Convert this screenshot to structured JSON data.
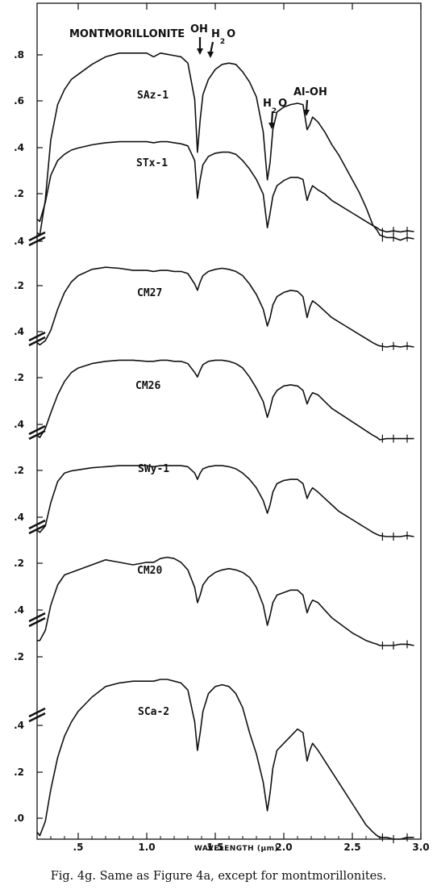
{
  "caption": "Fig. 4g.   Same as Figure 4a, except for montmorillonites.",
  "chart_data": {
    "type": "line",
    "title": "MONTMORILLONITE",
    "xlabel_parts": [
      "WAVELENGTH (",
      "μm",
      ")"
    ],
    "xlim": [
      0.2,
      3.0
    ],
    "x_ticks": [
      0.5,
      1.0,
      1.5,
      2.0,
      2.5,
      3.0
    ],
    "x_tick_labels": [
      ".5",
      "1.0",
      "1.5",
      "2.0",
      "2.5",
      "3.0"
    ],
    "annotations": [
      {
        "text": "OH",
        "sub": "",
        "tail": "",
        "x": 1.38
      },
      {
        "text": "H",
        "sub": "2",
        "tail": "O",
        "x": 1.45
      },
      {
        "text": "H",
        "sub": "2",
        "tail": "O",
        "x": 1.92
      },
      {
        "text": "Al-OH",
        "sub": "",
        "tail": "",
        "x": 2.2
      }
    ],
    "series": [
      {
        "name": "SAz-1",
        "ylim": [
          0.0,
          0.9
        ],
        "ticks": [
          0.2,
          0.4,
          0.6,
          0.8
        ],
        "tick_labels": [
          ".2",
          ".4",
          ".6",
          ".8"
        ],
        "x": [
          0.2,
          0.22,
          0.26,
          0.3,
          0.35,
          0.4,
          0.45,
          0.5,
          0.6,
          0.7,
          0.8,
          0.9,
          1.0,
          1.05,
          1.1,
          1.15,
          1.2,
          1.25,
          1.3,
          1.35,
          1.37,
          1.39,
          1.41,
          1.45,
          1.5,
          1.55,
          1.6,
          1.65,
          1.7,
          1.75,
          1.8,
          1.85,
          1.88,
          1.9,
          1.92,
          1.95,
          2.0,
          2.05,
          2.1,
          2.14,
          2.17,
          2.19,
          2.21,
          2.25,
          2.3,
          2.35,
          2.4,
          2.45,
          2.5,
          2.55,
          2.6,
          2.65,
          2.68,
          2.7,
          2.75,
          2.8,
          2.85,
          2.9,
          2.95
        ],
        "y": [
          0.07,
          0.06,
          0.2,
          0.44,
          0.58,
          0.64,
          0.68,
          0.7,
          0.74,
          0.77,
          0.785,
          0.785,
          0.785,
          0.77,
          0.785,
          0.78,
          0.775,
          0.77,
          0.745,
          0.6,
          0.39,
          0.52,
          0.62,
          0.68,
          0.72,
          0.74,
          0.745,
          0.74,
          0.71,
          0.67,
          0.61,
          0.47,
          0.28,
          0.35,
          0.48,
          0.55,
          0.57,
          0.58,
          0.585,
          0.58,
          0.48,
          0.5,
          0.53,
          0.51,
          0.47,
          0.42,
          0.38,
          0.33,
          0.28,
          0.23,
          0.17,
          0.1,
          0.08,
          0.06,
          0.05,
          0.05,
          0.04,
          0.05,
          0.045
        ]
      },
      {
        "name": "STx-1",
        "ylim": [
          0.0,
          0.5
        ],
        "ticks": [
          0.2
        ],
        "tick_labels": [
          ".2"
        ],
        "x": [
          0.2,
          0.22,
          0.26,
          0.3,
          0.35,
          0.4,
          0.45,
          0.5,
          0.6,
          0.7,
          0.8,
          0.9,
          1.0,
          1.05,
          1.1,
          1.15,
          1.2,
          1.25,
          1.3,
          1.35,
          1.37,
          1.39,
          1.41,
          1.45,
          1.5,
          1.55,
          1.6,
          1.65,
          1.7,
          1.75,
          1.8,
          1.85,
          1.88,
          1.9,
          1.92,
          1.95,
          2.0,
          2.05,
          2.1,
          2.14,
          2.17,
          2.19,
          2.21,
          2.25,
          2.3,
          2.35,
          2.4,
          2.45,
          2.5,
          2.55,
          2.6,
          2.65,
          2.68,
          2.7,
          2.75,
          2.8,
          2.85,
          2.9,
          2.95
        ],
        "y": [
          0.07,
          0.06,
          0.15,
          0.28,
          0.35,
          0.38,
          0.4,
          0.41,
          0.425,
          0.435,
          0.44,
          0.44,
          0.44,
          0.435,
          0.44,
          0.44,
          0.435,
          0.43,
          0.42,
          0.35,
          0.17,
          0.26,
          0.33,
          0.37,
          0.385,
          0.39,
          0.39,
          0.38,
          0.35,
          0.31,
          0.26,
          0.19,
          0.03,
          0.1,
          0.18,
          0.23,
          0.255,
          0.27,
          0.27,
          0.26,
          0.16,
          0.2,
          0.23,
          0.21,
          0.19,
          0.16,
          0.14,
          0.12,
          0.1,
          0.08,
          0.06,
          0.04,
          0.03,
          0.02,
          0.01,
          0.015,
          0.01,
          0.015,
          0.012
        ]
      },
      {
        "name": "CM27",
        "ylim": [
          0.0,
          0.5
        ],
        "ticks": [
          0.2,
          0.4
        ],
        "tick_labels": [
          ".2",
          ".4"
        ],
        "x": [
          0.2,
          0.22,
          0.26,
          0.3,
          0.35,
          0.4,
          0.45,
          0.5,
          0.6,
          0.7,
          0.8,
          0.9,
          1.0,
          1.05,
          1.1,
          1.15,
          1.2,
          1.25,
          1.3,
          1.35,
          1.37,
          1.39,
          1.41,
          1.45,
          1.5,
          1.55,
          1.6,
          1.65,
          1.7,
          1.75,
          1.8,
          1.85,
          1.88,
          1.9,
          1.92,
          1.95,
          2.0,
          2.05,
          2.1,
          2.14,
          2.17,
          2.19,
          2.21,
          2.25,
          2.3,
          2.35,
          2.4,
          2.45,
          2.5,
          2.55,
          2.6,
          2.65,
          2.68,
          2.7,
          2.75,
          2.8,
          2.85,
          2.9,
          2.95
        ],
        "y": [
          0.02,
          0.01,
          0.03,
          0.08,
          0.18,
          0.26,
          0.31,
          0.34,
          0.37,
          0.38,
          0.375,
          0.365,
          0.365,
          0.36,
          0.365,
          0.365,
          0.36,
          0.36,
          0.35,
          0.3,
          0.27,
          0.31,
          0.34,
          0.36,
          0.37,
          0.375,
          0.37,
          0.36,
          0.34,
          0.3,
          0.25,
          0.18,
          0.1,
          0.14,
          0.2,
          0.24,
          0.26,
          0.27,
          0.265,
          0.24,
          0.14,
          0.19,
          0.22,
          0.2,
          0.17,
          0.14,
          0.12,
          0.1,
          0.08,
          0.06,
          0.04,
          0.02,
          0.01,
          0.005,
          0.0,
          0.005,
          0.0,
          0.005,
          0.0
        ]
      },
      {
        "name": "CM26",
        "ylim": [
          0.0,
          0.45
        ],
        "ticks": [
          0.2,
          0.4
        ],
        "tick_labels": [
          ".2",
          ".4"
        ],
        "x": [
          0.2,
          0.22,
          0.26,
          0.3,
          0.35,
          0.4,
          0.45,
          0.5,
          0.6,
          0.7,
          0.8,
          0.9,
          1.0,
          1.05,
          1.1,
          1.15,
          1.2,
          1.25,
          1.3,
          1.35,
          1.37,
          1.39,
          1.41,
          1.45,
          1.5,
          1.55,
          1.6,
          1.65,
          1.7,
          1.75,
          1.8,
          1.85,
          1.88,
          1.9,
          1.92,
          1.95,
          2.0,
          2.05,
          2.1,
          2.14,
          2.17,
          2.19,
          2.21,
          2.25,
          2.3,
          2.35,
          2.4,
          2.45,
          2.5,
          2.55,
          2.6,
          2.65,
          2.68,
          2.7,
          2.75,
          2.8,
          2.85,
          2.9,
          2.95
        ],
        "y": [
          0.02,
          0.01,
          0.05,
          0.12,
          0.2,
          0.26,
          0.3,
          0.32,
          0.34,
          0.35,
          0.355,
          0.355,
          0.35,
          0.35,
          0.355,
          0.355,
          0.35,
          0.35,
          0.34,
          0.3,
          0.28,
          0.31,
          0.335,
          0.35,
          0.355,
          0.355,
          0.35,
          0.34,
          0.32,
          0.28,
          0.23,
          0.17,
          0.1,
          0.14,
          0.19,
          0.22,
          0.24,
          0.245,
          0.24,
          0.22,
          0.16,
          0.19,
          0.21,
          0.2,
          0.17,
          0.14,
          0.12,
          0.1,
          0.08,
          0.06,
          0.04,
          0.02,
          0.01,
          0.0,
          0.005,
          0.005,
          0.005,
          0.005,
          0.005
        ]
      },
      {
        "name": "SWy-1",
        "ylim": [
          0.0,
          0.4
        ],
        "ticks": [
          0.2,
          0.4
        ],
        "tick_labels": [
          ".2",
          ".4"
        ],
        "x": [
          0.2,
          0.22,
          0.26,
          0.3,
          0.35,
          0.4,
          0.45,
          0.5,
          0.6,
          0.7,
          0.8,
          0.9,
          1.0,
          1.05,
          1.1,
          1.15,
          1.2,
          1.25,
          1.3,
          1.35,
          1.37,
          1.39,
          1.41,
          1.45,
          1.5,
          1.55,
          1.6,
          1.65,
          1.7,
          1.75,
          1.8,
          1.85,
          1.88,
          1.9,
          1.92,
          1.95,
          2.0,
          2.05,
          2.1,
          2.14,
          2.17,
          2.19,
          2.21,
          2.25,
          2.3,
          2.35,
          2.4,
          2.45,
          2.5,
          2.55,
          2.6,
          2.65,
          2.68,
          2.7,
          2.75,
          2.8,
          2.85,
          2.9,
          2.95
        ],
        "y": [
          0.03,
          0.02,
          0.05,
          0.16,
          0.26,
          0.3,
          0.31,
          0.315,
          0.325,
          0.33,
          0.335,
          0.335,
          0.335,
          0.33,
          0.335,
          0.335,
          0.335,
          0.335,
          0.33,
          0.3,
          0.27,
          0.3,
          0.32,
          0.33,
          0.335,
          0.335,
          0.33,
          0.32,
          0.3,
          0.27,
          0.23,
          0.17,
          0.11,
          0.15,
          0.21,
          0.25,
          0.265,
          0.27,
          0.27,
          0.25,
          0.18,
          0.21,
          0.23,
          0.21,
          0.18,
          0.15,
          0.12,
          0.1,
          0.08,
          0.06,
          0.04,
          0.02,
          0.01,
          0.005,
          0.0,
          0.0,
          0.0,
          0.005,
          0.0
        ]
      },
      {
        "name": "CM20",
        "ylim": [
          0.0,
          0.4
        ],
        "ticks": [
          0.2,
          0.4
        ],
        "tick_labels": [
          ".2",
          ".4"
        ],
        "x": [
          0.2,
          0.22,
          0.26,
          0.3,
          0.35,
          0.4,
          0.45,
          0.5,
          0.6,
          0.7,
          0.8,
          0.9,
          1.0,
          1.05,
          1.1,
          1.15,
          1.2,
          1.25,
          1.3,
          1.35,
          1.37,
          1.39,
          1.41,
          1.45,
          1.5,
          1.55,
          1.6,
          1.65,
          1.7,
          1.75,
          1.8,
          1.85,
          1.88,
          1.9,
          1.92,
          1.95,
          2.0,
          2.05,
          2.1,
          2.14,
          2.17,
          2.19,
          2.21,
          2.25,
          2.3,
          2.35,
          2.4,
          2.45,
          2.5,
          2.55,
          2.6,
          2.65,
          2.68,
          2.7,
          2.75,
          2.8,
          2.85,
          2.9,
          2.95
        ],
        "y": [
          0.02,
          0.02,
          0.06,
          0.16,
          0.24,
          0.28,
          0.29,
          0.3,
          0.32,
          0.34,
          0.33,
          0.32,
          0.33,
          0.33,
          0.345,
          0.35,
          0.345,
          0.33,
          0.3,
          0.23,
          0.17,
          0.2,
          0.24,
          0.27,
          0.29,
          0.3,
          0.305,
          0.3,
          0.29,
          0.27,
          0.23,
          0.16,
          0.08,
          0.12,
          0.17,
          0.2,
          0.21,
          0.22,
          0.22,
          0.2,
          0.13,
          0.16,
          0.18,
          0.17,
          0.14,
          0.11,
          0.09,
          0.07,
          0.05,
          0.035,
          0.02,
          0.01,
          0.005,
          0.0,
          0.0,
          0.0,
          0.005,
          0.005,
          0.0
        ]
      },
      {
        "name": "SCa-2",
        "ylim": [
          0.0,
          0.5
        ],
        "ticks": [
          0.0,
          0.2,
          0.4
        ],
        "tick_labels": [
          ".0",
          ".2",
          ".4"
        ],
        "x": [
          0.2,
          0.22,
          0.26,
          0.3,
          0.35,
          0.4,
          0.45,
          0.5,
          0.6,
          0.7,
          0.8,
          0.9,
          1.0,
          1.05,
          1.1,
          1.15,
          1.2,
          1.25,
          1.3,
          1.35,
          1.37,
          1.39,
          1.41,
          1.45,
          1.5,
          1.55,
          1.6,
          1.65,
          1.7,
          1.75,
          1.8,
          1.85,
          1.88,
          1.9,
          1.92,
          1.95,
          2.0,
          2.05,
          2.1,
          2.14,
          2.17,
          2.19,
          2.21,
          2.25,
          2.3,
          2.35,
          2.4,
          2.45,
          2.5,
          2.55,
          2.6,
          2.65,
          2.68,
          2.7,
          2.75,
          2.8,
          2.85,
          2.9,
          2.95
        ],
        "y": [
          0.02,
          0.01,
          0.05,
          0.14,
          0.23,
          0.29,
          0.33,
          0.36,
          0.4,
          0.43,
          0.44,
          0.445,
          0.445,
          0.445,
          0.45,
          0.45,
          0.445,
          0.44,
          0.42,
          0.33,
          0.25,
          0.3,
          0.36,
          0.41,
          0.43,
          0.435,
          0.43,
          0.41,
          0.37,
          0.3,
          0.24,
          0.16,
          0.08,
          0.13,
          0.2,
          0.25,
          0.27,
          0.29,
          0.31,
          0.3,
          0.22,
          0.25,
          0.27,
          0.25,
          0.22,
          0.19,
          0.16,
          0.13,
          0.1,
          0.07,
          0.04,
          0.02,
          0.01,
          0.005,
          0.005,
          0.0,
          0.0,
          0.005,
          0.005
        ]
      }
    ]
  }
}
